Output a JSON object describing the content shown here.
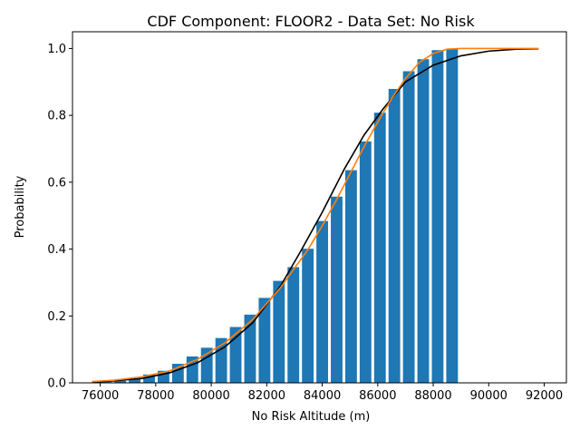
{
  "chart_data": {
    "type": "bar",
    "title": "CDF Component: FLOOR2 - Data Set: No Risk",
    "xlabel": "No Risk Altitude (m)",
    "ylabel": "Probability",
    "xlim": [
      75000,
      92800
    ],
    "ylim": [
      0,
      1.05
    ],
    "x_ticks": [
      76000,
      78000,
      80000,
      82000,
      84000,
      86000,
      88000,
      90000,
      92000
    ],
    "x_tick_labels": [
      "76000",
      "78000",
      "80000",
      "82000",
      "84000",
      "86000",
      "88000",
      "90000",
      "92000"
    ],
    "y_ticks": [
      0.0,
      0.2,
      0.4,
      0.6,
      0.8,
      1.0
    ],
    "y_tick_labels": [
      "0.0",
      "0.2",
      "0.4",
      "0.6",
      "0.8",
      "1.0"
    ],
    "grid": false,
    "legend": "none",
    "bar_color": "#1f77b4",
    "bar_width": 420,
    "bars": {
      "x": [
        76200,
        76720,
        77240,
        77760,
        78280,
        78800,
        79320,
        79840,
        80360,
        80880,
        81400,
        81920,
        82440,
        82960,
        83480,
        84000,
        84520,
        85040,
        85560,
        86080,
        86600,
        87120,
        87640,
        88160,
        88680
      ],
      "values": [
        0.003,
        0.006,
        0.012,
        0.025,
        0.036,
        0.057,
        0.079,
        0.105,
        0.134,
        0.167,
        0.204,
        0.254,
        0.305,
        0.346,
        0.401,
        0.484,
        0.557,
        0.636,
        0.722,
        0.808,
        0.879,
        0.932,
        0.968,
        0.995,
        0.998
      ]
    },
    "series": [
      {
        "color": "#000000",
        "type": "line",
        "x": [
          75700,
          76500,
          77500,
          78500,
          79500,
          80500,
          81500,
          82500,
          83200,
          84000,
          84800,
          85500,
          86200,
          87000,
          88000,
          89000,
          90000,
          91000,
          91800
        ],
        "y": [
          0.002,
          0.006,
          0.013,
          0.03,
          0.06,
          0.108,
          0.18,
          0.29,
          0.39,
          0.51,
          0.64,
          0.74,
          0.82,
          0.9,
          0.95,
          0.978,
          0.992,
          0.998,
          0.999
        ]
      },
      {
        "color": "#ff7f0e",
        "type": "line",
        "x": [
          75700,
          76500,
          77500,
          78500,
          79500,
          80500,
          81500,
          82500,
          83500,
          84000,
          84500,
          85000,
          85500,
          86000,
          86500,
          87000,
          87500,
          88000,
          88500,
          89000,
          90000,
          91000,
          91800
        ],
        "y": [
          0.004,
          0.008,
          0.018,
          0.036,
          0.07,
          0.12,
          0.19,
          0.285,
          0.4,
          0.47,
          0.545,
          0.625,
          0.705,
          0.78,
          0.85,
          0.91,
          0.958,
          0.985,
          0.998,
          1.0,
          1.0,
          1.0,
          1.0
        ]
      }
    ]
  }
}
